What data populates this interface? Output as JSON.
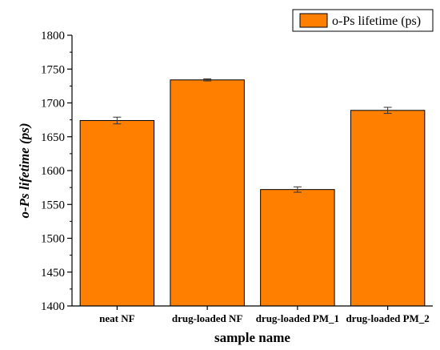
{
  "chart_data": {
    "type": "bar",
    "title": "",
    "xlabel": "sample name",
    "ylabel": "o-Ps lifetime (ps)",
    "categories": [
      "neat NF",
      "drug-loaded NF",
      "drug-loaded PM_1",
      "drug-loaded PM_2"
    ],
    "series": [
      {
        "name": "o-Ps lifetime (ps)",
        "values": [
          1674,
          1734,
          1572,
          1689
        ],
        "errors": [
          5,
          1.5,
          4,
          4.5
        ]
      }
    ],
    "ylim": [
      1400,
      1800
    ],
    "yticks": [
      1400,
      1450,
      1500,
      1550,
      1600,
      1650,
      1700,
      1750,
      1800
    ],
    "grid": false,
    "legend_position": "top-right",
    "colors": {
      "bar_fill": "#FF8000",
      "bar_stroke": "#000000",
      "axis": "#000000"
    }
  }
}
